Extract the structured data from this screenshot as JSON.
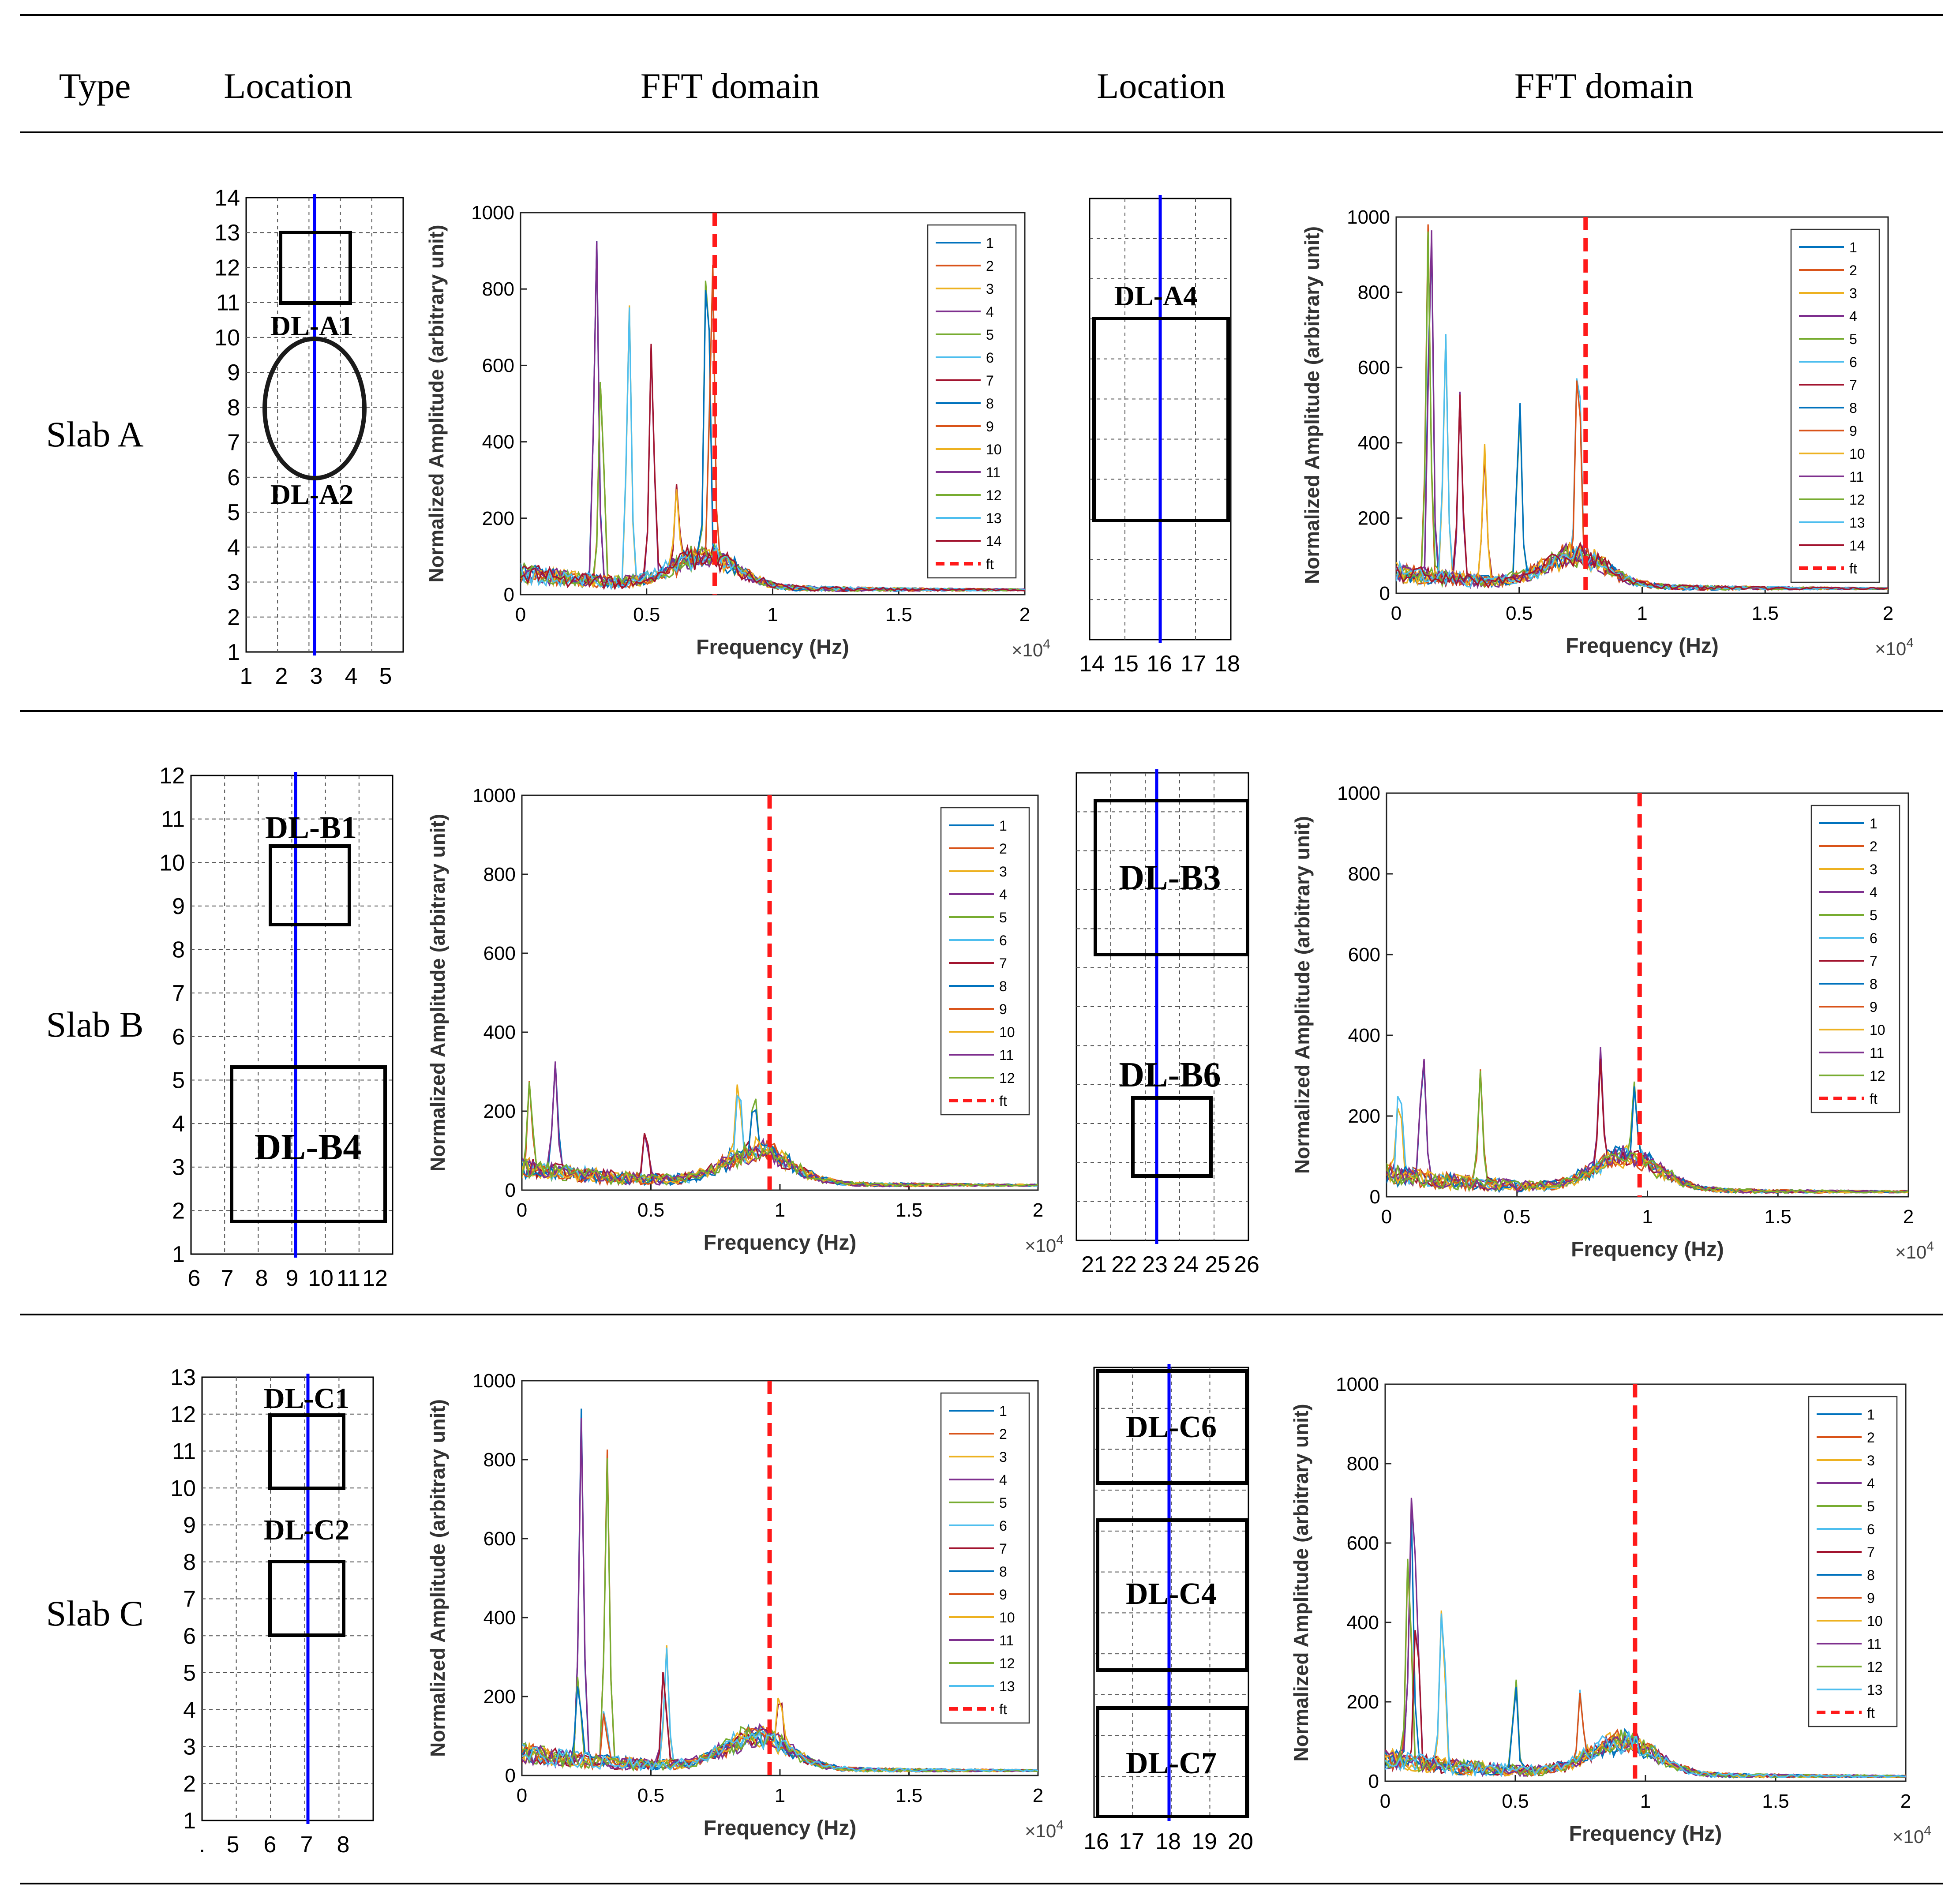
{
  "headers": [
    "Type",
    "Location",
    "FFT domain",
    "Location",
    "FFT domain"
  ],
  "rows": [
    {
      "type_label": "Slab A",
      "loc1": {
        "xticks": [
          "1",
          "2",
          "3",
          "4",
          "5"
        ],
        "yticks": [
          "1",
          "2",
          "3",
          "4",
          "5",
          "6",
          "7",
          "8",
          "9",
          "10",
          "11",
          "12",
          "13",
          "14"
        ],
        "labels": [
          "DL-A1",
          "DL-A2"
        ]
      },
      "loc2": {
        "xticks": [
          "14",
          "15",
          "16",
          "17",
          "18"
        ],
        "labels": [
          "DL-A4"
        ]
      }
    },
    {
      "type_label": "Slab B",
      "loc1": {
        "xticks": [
          "6",
          "7",
          "8",
          "9",
          "10",
          "11",
          "12"
        ],
        "yticks": [
          "1",
          "2",
          "3",
          "4",
          "5",
          "6",
          "7",
          "8",
          "9",
          "10",
          "11",
          "12"
        ],
        "labels": [
          "DL-B1",
          "DL-B4"
        ]
      },
      "loc2": {
        "xticks": [
          "21",
          "22",
          "23",
          "24",
          "25",
          "26"
        ],
        "labels": [
          "DL-B3",
          "DL-B6"
        ]
      }
    },
    {
      "type_label": "Slab C",
      "loc1": {
        "xticks": [
          ".",
          "5",
          "6",
          "7",
          "8"
        ],
        "yticks": [
          "1",
          "2",
          "3",
          "4",
          "5",
          "6",
          "7",
          "8",
          "9",
          "10",
          "11",
          "12",
          "13"
        ],
        "labels": [
          "DL-C1",
          "DL-C2"
        ]
      },
      "loc2": {
        "xticks": [
          "16",
          "17",
          "18",
          "19",
          "20"
        ],
        "labels": [
          "DL-C6",
          "DL-C4",
          "DL-C7"
        ]
      }
    }
  ],
  "common_axes": {
    "xlabel": "Frequency (Hz)",
    "ylabel": "Normalized Amplitude (arbitrary unit)",
    "x_multiplier": "×10",
    "x_multiplier_exp": "4",
    "xticks": [
      "0",
      "0.5",
      "1",
      "1.5",
      "2"
    ],
    "yticks": [
      "0",
      "200",
      "400",
      "600",
      "800",
      "1000"
    ]
  },
  "colors": [
    "#0072BD",
    "#D95319",
    "#EDB120",
    "#7E2F8E",
    "#77AC30",
    "#4DBEEE",
    "#A2142F"
  ],
  "chart_data": [
    {
      "type": "line",
      "panel": "Slab A – left",
      "xlim": [
        0,
        2
      ],
      "ylim": [
        0,
        1000
      ],
      "grid": false,
      "legend": "top-right",
      "legend_entries": [
        "1",
        "2",
        "3",
        "4",
        "5",
        "6",
        "7",
        "8",
        "9",
        "10",
        "11",
        "12",
        "13",
        "14",
        "ft"
      ],
      "series_count": 14,
      "ft": 0.77,
      "peaks": [
        [
          0.3,
          910
        ],
        [
          0.32,
          570
        ],
        [
          0.43,
          720
        ],
        [
          0.52,
          620
        ],
        [
          0.74,
          870
        ],
        [
          0.76,
          780
        ],
        [
          0.62,
          200
        ]
      ]
    },
    {
      "type": "line",
      "panel": "Slab A – right",
      "xlim": [
        0,
        2
      ],
      "ylim": [
        0,
        1000
      ],
      "grid": false,
      "legend": "top-right",
      "legend_entries": [
        "1",
        "2",
        "3",
        "4",
        "5",
        "6",
        "7",
        "8",
        "9",
        "10",
        "11",
        "12",
        "13",
        "14",
        "ft"
      ],
      "series_count": 14,
      "ft": 0.77,
      "peaks": [
        [
          0.14,
          1000
        ],
        [
          0.13,
          920
        ],
        [
          0.2,
          650
        ],
        [
          0.26,
          500
        ],
        [
          0.5,
          480
        ],
        [
          0.74,
          590
        ],
        [
          0.36,
          350
        ]
      ]
    },
    {
      "type": "line",
      "panel": "Slab B – left",
      "xlim": [
        0,
        2
      ],
      "ylim": [
        0,
        1000
      ],
      "grid": false,
      "legend": "top-right",
      "legend_entries": [
        "1",
        "2",
        "3",
        "4",
        "5",
        "6",
        "7",
        "8",
        "9",
        "10",
        "11",
        "12",
        "ft"
      ],
      "series_count": 12,
      "ft": 0.96,
      "peaks": [
        [
          0.13,
          280
        ],
        [
          0.03,
          220
        ],
        [
          0.84,
          190
        ],
        [
          0.48,
          140
        ],
        [
          0.9,
          160
        ]
      ]
    },
    {
      "type": "line",
      "panel": "Slab B – right",
      "xlim": [
        0,
        2
      ],
      "ylim": [
        0,
        1000
      ],
      "grid": false,
      "legend": "top-right",
      "legend_entries": [
        "1",
        "2",
        "3",
        "4",
        "5",
        "6",
        "7",
        "8",
        "9",
        "10",
        "11",
        "12",
        "ft"
      ],
      "series_count": 12,
      "ft": 0.97,
      "peaks": [
        [
          0.14,
          320
        ],
        [
          0.36,
          280
        ],
        [
          0.05,
          230
        ],
        [
          0.82,
          270
        ],
        [
          0.95,
          180
        ]
      ]
    },
    {
      "type": "line",
      "panel": "Slab C – left",
      "xlim": [
        0,
        2
      ],
      "ylim": [
        0,
        1000
      ],
      "grid": false,
      "legend": "top-right",
      "legend_entries": [
        "1",
        "2",
        "3",
        "4",
        "5",
        "6",
        "7",
        "8",
        "9",
        "10",
        "11",
        "12",
        "13",
        "ft"
      ],
      "series_count": 13,
      "ft": 0.96,
      "peaks": [
        [
          0.23,
          870
        ],
        [
          0.33,
          780
        ],
        [
          0.56,
          300
        ],
        [
          0.55,
          260
        ],
        [
          0.22,
          220
        ],
        [
          0.32,
          150
        ],
        [
          1.0,
          140
        ]
      ]
    },
    {
      "type": "line",
      "panel": "Slab C – right",
      "xlim": [
        0,
        2
      ],
      "ylim": [
        0,
        1000
      ],
      "grid": false,
      "legend": "top-right",
      "legend_entries": [
        "1",
        "2",
        "3",
        "4",
        "5",
        "6",
        "7",
        "8",
        "9",
        "10",
        "11",
        "12",
        "13",
        "ft"
      ],
      "series_count": 13,
      "ft": 0.96,
      "peaks": [
        [
          0.1,
          630
        ],
        [
          0.09,
          570
        ],
        [
          0.22,
          440
        ],
        [
          0.12,
          400
        ],
        [
          0.5,
          240
        ],
        [
          0.75,
          160
        ]
      ]
    }
  ]
}
